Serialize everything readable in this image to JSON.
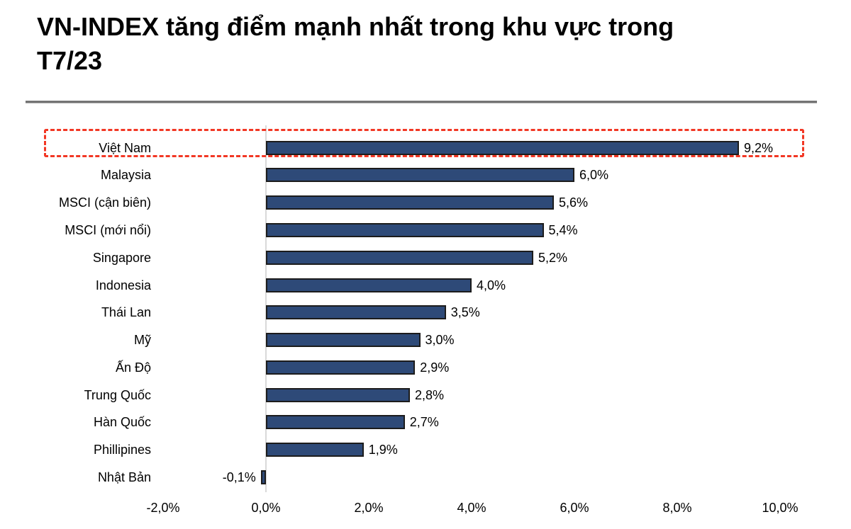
{
  "page": {
    "title_line1": "VN-INDEX tăng điểm mạnh nhất trong khu vực trong",
    "title_line2": "T7/23"
  },
  "chart_data": {
    "type": "bar",
    "orientation": "horizontal",
    "title": "VN-INDEX tăng điểm mạnh nhất trong khu vực trong T7/23",
    "categories": [
      "Việt Nam",
      "Malaysia",
      "MSCI (cận biên)",
      "MSCI (mới nổi)",
      "Singapore",
      "Indonesia",
      "Thái Lan",
      "Mỹ",
      "Ấn Độ",
      "Trung Quốc",
      "Hàn Quốc",
      "Phillipines",
      "Nhật Bản"
    ],
    "values": [
      9.2,
      6.0,
      5.6,
      5.4,
      5.2,
      4.0,
      3.5,
      3.0,
      2.9,
      2.8,
      2.7,
      1.9,
      -0.1
    ],
    "value_labels": [
      "9,2%",
      "6,0%",
      "5,6%",
      "5,4%",
      "5,2%",
      "4,0%",
      "3,5%",
      "3,0%",
      "2,9%",
      "2,8%",
      "2,7%",
      "1,9%",
      "-0,1%"
    ],
    "x_ticks": [
      -2,
      0,
      2,
      4,
      6,
      8,
      10
    ],
    "x_tick_labels": [
      "-2,0%",
      "0,0%",
      "2,0%",
      "4,0%",
      "6,0%",
      "8,0%",
      "10,0%"
    ],
    "xlim": [
      -2,
      10
    ],
    "grid": "off",
    "legend": "none",
    "highlight": {
      "category": "Việt Nam",
      "style": "red-dashed-box"
    },
    "colors": {
      "bar_fill": "#2E4A78",
      "bar_border": "#1C1C1C",
      "highlight_border": "#F23724",
      "axis_line": "#D9D9D9",
      "text": "#000000"
    }
  }
}
